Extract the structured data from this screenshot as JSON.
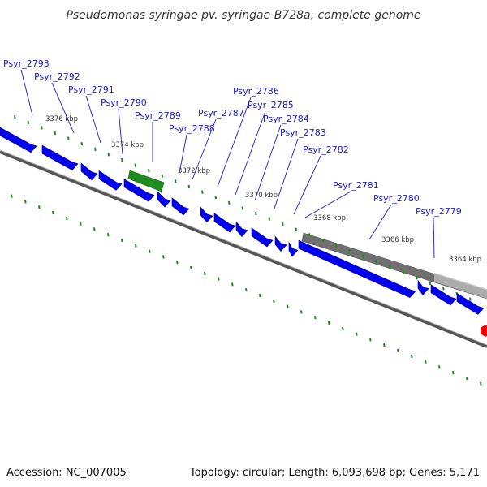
{
  "title": "Pseudomonas syringae pv. syringae B728a, complete genome",
  "footer": {
    "accession": "Accession: NC_007005",
    "summary": "Topology: circular; Length: 6,093,698 bp; Genes: 5,171"
  },
  "colors": {
    "gene": "#0000ee",
    "gene_highlight": "#1e8c1e",
    "label": "#1a1ad6",
    "backbone": "#888888",
    "tick": "#1a8a1a",
    "region": "#707070",
    "marker": "#ee0000"
  },
  "icons": {
    "marker": "red-hexagon-marker-icon"
  },
  "scale": {
    "unit": "kbp",
    "labels": [
      "3376 kbp",
      "3374 kbp",
      "3372 kbp",
      "3370 kbp",
      "3368 kbp",
      "3366 kbp",
      "3364 kbp"
    ]
  },
  "genes": [
    {
      "name": "Psyr_2793"
    },
    {
      "name": "Psyr_2792"
    },
    {
      "name": "Psyr_2791"
    },
    {
      "name": "Psyr_2790"
    },
    {
      "name": "Psyr_2789",
      "highlighted": true
    },
    {
      "name": "Psyr_2788"
    },
    {
      "name": "Psyr_2787"
    },
    {
      "name": "Psyr_2786"
    },
    {
      "name": "Psyr_2785"
    },
    {
      "name": "Psyr_2784"
    },
    {
      "name": "Psyr_2783"
    },
    {
      "name": "Psyr_2782"
    },
    {
      "name": "Psyr_2781"
    },
    {
      "name": "Psyr_2780"
    },
    {
      "name": "Psyr_2779"
    }
  ]
}
